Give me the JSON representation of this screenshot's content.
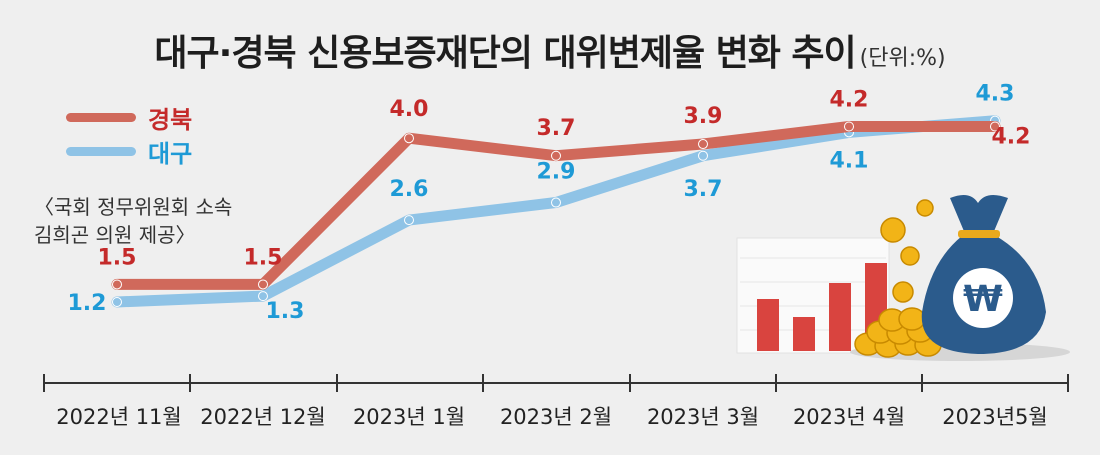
{
  "title": "대구·경북 신용보증재단의 대위변제율 변화 추이",
  "unit": "(단위:%)",
  "source": [
    "〈국회 정무위원회 소속",
    "김희곤 의원 제공〉"
  ],
  "colors": {
    "gyeongbuk_line": "#d0695b",
    "gyeongbuk_label": "#c42a2a",
    "daegu_line": "#8fc3e6",
    "daegu_label": "#1e9ad6",
    "axis": "#333333",
    "chart_bars": "#d9443f",
    "money_bag": "#2b5b8c",
    "coins": "#f2b417"
  },
  "chart_data": {
    "type": "line",
    "title": "대구·경북 신용보증재단의 대위변제율 변화 추이",
    "unit": "(단위:%)",
    "categories": [
      "2022년 11월",
      "2022년 12월",
      "2023년 1월",
      "2023년 2월",
      "2023년 3월",
      "2023년 4월",
      "2023년5월"
    ],
    "series": [
      {
        "name": "경북",
        "values": [
          1.5,
          1.5,
          4.0,
          3.7,
          3.9,
          4.2,
          4.2
        ],
        "labels": [
          "1.5",
          "1.5",
          "4.0",
          "3.7",
          "3.9",
          "4.2",
          "4.2"
        ]
      },
      {
        "name": "대구",
        "values": [
          1.2,
          1.3,
          2.6,
          2.9,
          3.7,
          4.1,
          4.3
        ],
        "labels": [
          "1.2",
          "1.3",
          "2.6",
          "2.9",
          "3.7",
          "4.1",
          "4.3"
        ]
      }
    ],
    "grid": false,
    "legend_position": "top-left",
    "decoration": [
      "bar-chart-illustration",
      "coins-icon",
      "money-bag-won-icon"
    ],
    "decoration_symbol": "₩"
  }
}
